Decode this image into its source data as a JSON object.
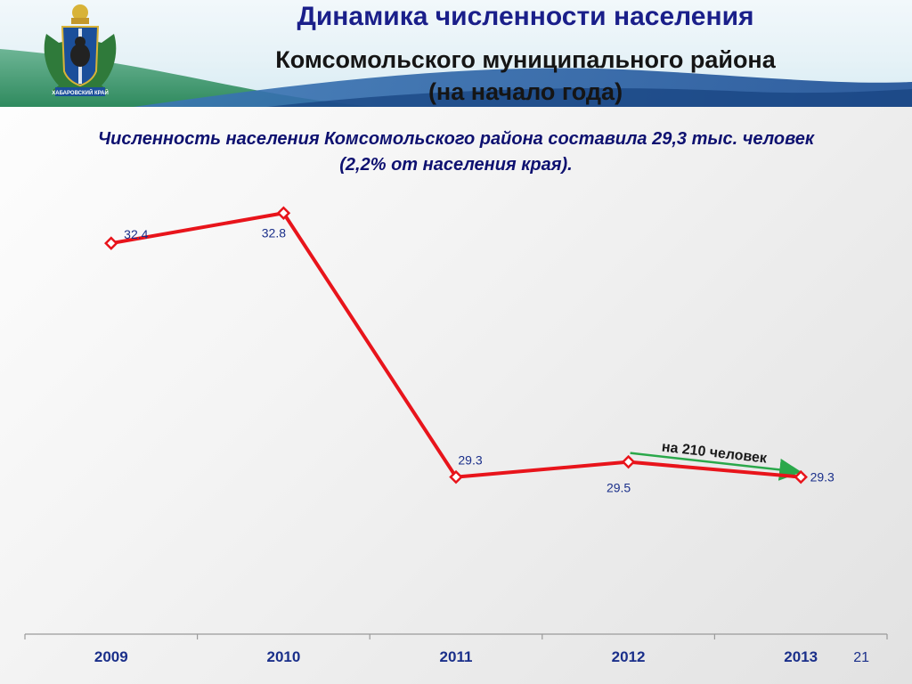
{
  "header": {
    "title_line1": "Динамика численности населения",
    "title_line2": "Комсомольского муниципального района",
    "title_line3": "(на начало года)",
    "emblem_text": "ХАБАРОВСКИЙ КРАЙ",
    "emblem_icon": "coat-of-arms-icon"
  },
  "subtitle": {
    "line1": "Численность населения Комсомольского района составила 29,3 тыс. человек",
    "line2": "(2,2% от населения края)."
  },
  "chart_data": {
    "type": "line",
    "categories": [
      "2009",
      "2010",
      "2011",
      "2012",
      "2013"
    ],
    "series": [
      {
        "values": [
          32.4,
          32.8,
          29.3,
          29.5,
          29.3
        ],
        "color": "#e8141b"
      }
    ],
    "data_labels": [
      "32.4",
      "32.8",
      "29.3",
      "29.5",
      "29.3"
    ],
    "annotation": {
      "text": "на 210 человек",
      "from": "2012",
      "to": "2013",
      "color": "#2aa84a"
    },
    "ylim": [
      27.5,
      33.5
    ],
    "grid": false,
    "label_color": "#1a2f8a"
  },
  "footer": {
    "page_number": "21"
  }
}
